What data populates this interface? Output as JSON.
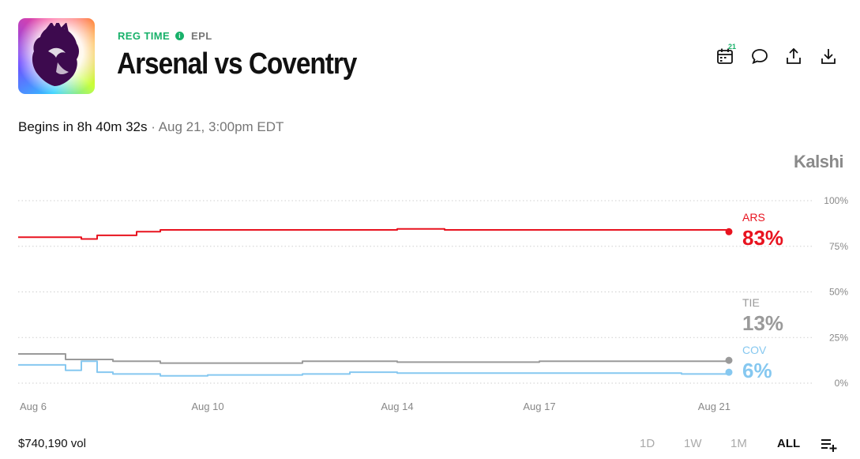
{
  "header": {
    "status": "REG TIME",
    "league": "EPL",
    "title": "Arsenal vs Coventry",
    "calendar_badge": "21"
  },
  "icons": [
    "calendar-icon",
    "comment-icon",
    "share-icon",
    "download-icon",
    "info-icon",
    "list-add-icon",
    "lion-crest-logo"
  ],
  "timing": {
    "begins": "Begins in 8h 40m 32s",
    "separator": " · ",
    "date": "Aug 21, 3:00pm EDT"
  },
  "brand": "Kalshi",
  "footer": {
    "volume": "$740,190 vol",
    "ranges": [
      "1D",
      "1W",
      "1M",
      "ALL"
    ],
    "active_range": "ALL"
  },
  "colors": {
    "accent": "#18b16a",
    "ARS": "#e8131f",
    "TIE": "#9a9a9a",
    "COV": "#86c8f0"
  },
  "chart_data": {
    "type": "line",
    "x_ticks": [
      "Aug 6",
      "Aug 10",
      "Aug 14",
      "Aug 17",
      "Aug 21"
    ],
    "y_ticks": [
      "100%",
      "75%",
      "50%",
      "25%",
      "0%"
    ],
    "ylim": [
      0,
      100
    ],
    "xlim": [
      "Aug 6",
      "Aug 21"
    ],
    "grid": true,
    "series": [
      {
        "name": "ARS",
        "label_value": "83%",
        "color": "#e8131f",
        "x": [
          "Aug 6",
          "Aug 6",
          "Aug 7",
          "Aug 7",
          "Aug 7",
          "Aug 8",
          "Aug 8",
          "Aug 9",
          "Aug 10",
          "Aug 12",
          "Aug 13",
          "Aug 14",
          "Aug 15",
          "Aug 16",
          "Aug 17",
          "Aug 18",
          "Aug 19",
          "Aug 20",
          "Aug 21"
        ],
        "y": [
          80,
          80,
          80,
          79,
          81,
          81,
          83,
          84,
          84,
          84,
          84,
          84.5,
          84,
          84,
          84,
          84,
          84,
          84,
          83
        ]
      },
      {
        "name": "TIE",
        "label_value": "13%",
        "color": "#9a9a9a",
        "x": [
          "Aug 6",
          "Aug 6",
          "Aug 7",
          "Aug 7",
          "Aug 8",
          "Aug 8",
          "Aug 9",
          "Aug 10",
          "Aug 12",
          "Aug 13",
          "Aug 14",
          "Aug 15",
          "Aug 16",
          "Aug 17",
          "Aug 18",
          "Aug 19",
          "Aug 20",
          "Aug 21"
        ],
        "y": [
          16,
          16,
          13,
          13,
          12,
          12,
          11,
          11,
          12,
          12,
          11.5,
          11.5,
          11.5,
          12,
          12,
          12,
          12,
          12.5
        ]
      },
      {
        "name": "COV",
        "label_value": "6%",
        "color": "#86c8f0",
        "x": [
          "Aug 6",
          "Aug 6",
          "Aug 7",
          "Aug 7",
          "Aug 7",
          "Aug 8",
          "Aug 9",
          "Aug 10",
          "Aug 12",
          "Aug 13",
          "Aug 14",
          "Aug 15",
          "Aug 16",
          "Aug 17",
          "Aug 18",
          "Aug 19",
          "Aug 20",
          "Aug 21"
        ],
        "y": [
          10,
          10,
          7,
          12,
          6,
          5,
          4,
          4.5,
          5,
          6,
          5.5,
          5.5,
          5.5,
          5.5,
          5.5,
          5.5,
          5,
          6
        ]
      }
    ]
  }
}
